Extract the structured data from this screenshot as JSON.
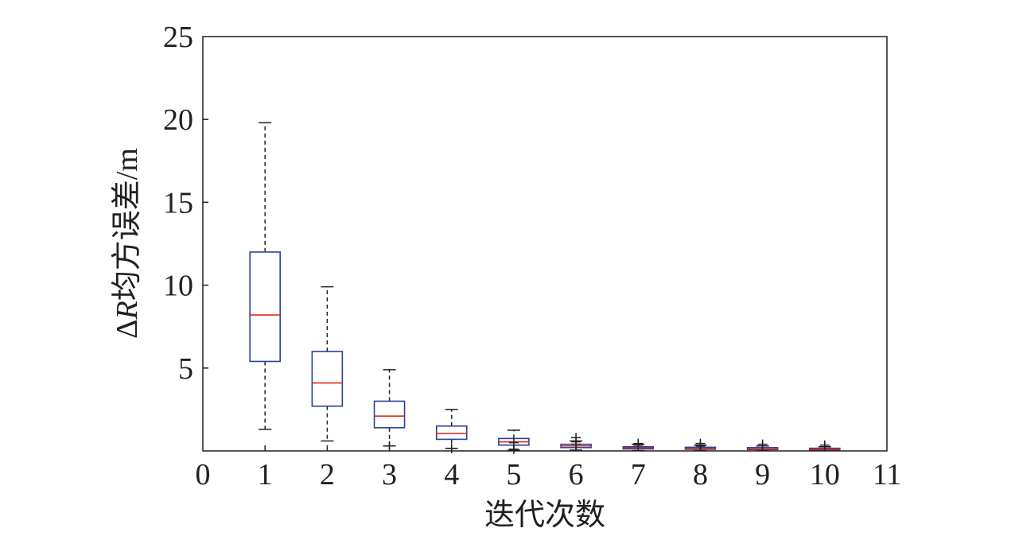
{
  "chart_data": {
    "type": "box",
    "xlabel": "迭代次数",
    "ylabel_delta": "Δ",
    "ylabel_var": "R",
    "ylabel_rest": "均方误差/m",
    "xlim": [
      0,
      11
    ],
    "ylim": [
      0,
      25
    ],
    "x_ticks": [
      "0",
      "1",
      "2",
      "3",
      "4",
      "5",
      "6",
      "7",
      "8",
      "9",
      "10",
      "11"
    ],
    "y_ticks": [
      "5",
      "10",
      "15",
      "20",
      "25"
    ],
    "box_color": "#2b3f98",
    "median_color": "#e0281b",
    "whisker_color": "#231f20",
    "outlier_color": "#231f20",
    "boxes": [
      {
        "x": 1,
        "whislo": 1.3,
        "q1": 5.4,
        "med": 8.2,
        "q3": 12.0,
        "whishi": 19.8,
        "fliers": []
      },
      {
        "x": 2,
        "whislo": 0.6,
        "q1": 2.7,
        "med": 4.1,
        "q3": 6.0,
        "whishi": 9.9,
        "fliers": []
      },
      {
        "x": 3,
        "whislo": 0.3,
        "q1": 1.4,
        "med": 2.1,
        "q3": 3.0,
        "whishi": 4.9,
        "fliers": [
          0.3
        ]
      },
      {
        "x": 4,
        "whislo": 0.15,
        "q1": 0.7,
        "med": 1.05,
        "q3": 1.5,
        "whishi": 2.5,
        "fliers": [
          0.15
        ]
      },
      {
        "x": 5,
        "whislo": 0.05,
        "q1": 0.35,
        "med": 0.55,
        "q3": 0.75,
        "whishi": 1.25,
        "fliers": [
          0.1,
          0.5
        ]
      },
      {
        "x": 6,
        "whislo": 0.05,
        "q1": 0.2,
        "med": 0.3,
        "q3": 0.4,
        "whishi": 0.6,
        "fliers": [
          0.4,
          0.55,
          0.8
        ]
      },
      {
        "x": 7,
        "whislo": 0.02,
        "q1": 0.12,
        "med": 0.18,
        "q3": 0.25,
        "whishi": 0.4,
        "fliers": [
          0.35,
          0.45
        ]
      },
      {
        "x": 8,
        "whislo": 0.02,
        "q1": 0.1,
        "med": 0.15,
        "q3": 0.22,
        "whishi": 0.35,
        "fliers": [
          0.3,
          0.45
        ]
      },
      {
        "x": 9,
        "whislo": 0.02,
        "q1": 0.08,
        "med": 0.12,
        "q3": 0.2,
        "whishi": 0.3,
        "fliers": [
          0.3,
          0.4
        ]
      },
      {
        "x": 10,
        "whislo": 0.02,
        "q1": 0.06,
        "med": 0.1,
        "q3": 0.16,
        "whishi": 0.25,
        "fliers": [
          0.25,
          0.35
        ]
      }
    ]
  }
}
